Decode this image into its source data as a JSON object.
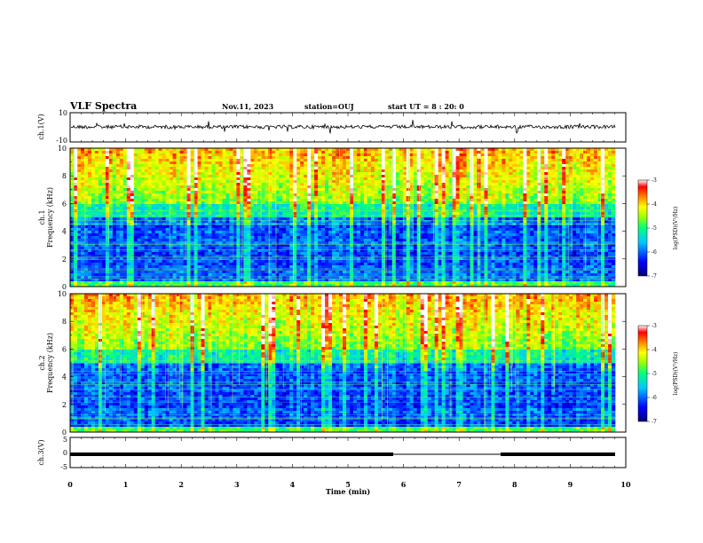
{
  "header": {
    "title": "VLF Spectra",
    "date": "Nov.11, 2023",
    "station": "station=OUJ",
    "start_ut": "start  UT =   8 : 20: 0"
  },
  "chart_data": [
    {
      "type": "line",
      "name": "waveform-ch1",
      "ylabel": "ch.1(V)",
      "ylim": [
        -10,
        10
      ],
      "yticks": [
        "10",
        "-10"
      ],
      "xlim": [
        0,
        10
      ]
    },
    {
      "type": "heatmap",
      "name": "spectrogram-ch1",
      "ylabel": "ch.1\nFrequency (kHz)",
      "ylim": [
        0,
        10
      ],
      "yticks": [
        "0",
        "2",
        "4",
        "6",
        "8",
        "10"
      ],
      "xlim": [
        0,
        10
      ],
      "colorbar": {
        "label": "log(PSD)(V²/Hz)",
        "range": [
          -7,
          -3
        ],
        "ticks": [
          "-3",
          "-4",
          "-5",
          "-6",
          "-7"
        ]
      }
    },
    {
      "type": "heatmap",
      "name": "spectrogram-ch2",
      "ylabel": "ch.2\nFrequency (kHz)",
      "ylim": [
        0,
        10
      ],
      "yticks": [
        "0",
        "2",
        "4",
        "6",
        "8",
        "10"
      ],
      "xlim": [
        0,
        10
      ],
      "colorbar": {
        "label": "log(PSD)(V²/Hz)",
        "range": [
          -7,
          -3
        ],
        "ticks": [
          "-3",
          "-4",
          "-5",
          "-6",
          "-7"
        ]
      }
    },
    {
      "type": "line",
      "name": "voltage-ch3",
      "ylabel": "ch.3(V)",
      "ylim": [
        -5,
        5
      ],
      "yticks": [
        "5",
        "0",
        "-5"
      ],
      "xlim": [
        0,
        10
      ],
      "xlabel": "Time (min)",
      "xticks": [
        "0",
        "1",
        "2",
        "3",
        "4",
        "5",
        "6",
        "7",
        "8",
        "9",
        "10"
      ]
    }
  ],
  "colors": {
    "colormap": [
      "#000080",
      "#0000ff",
      "#00c0ff",
      "#00ffa0",
      "#80ff00",
      "#ffff00",
      "#ff8000",
      "#ff0000",
      "#ffffff"
    ]
  }
}
